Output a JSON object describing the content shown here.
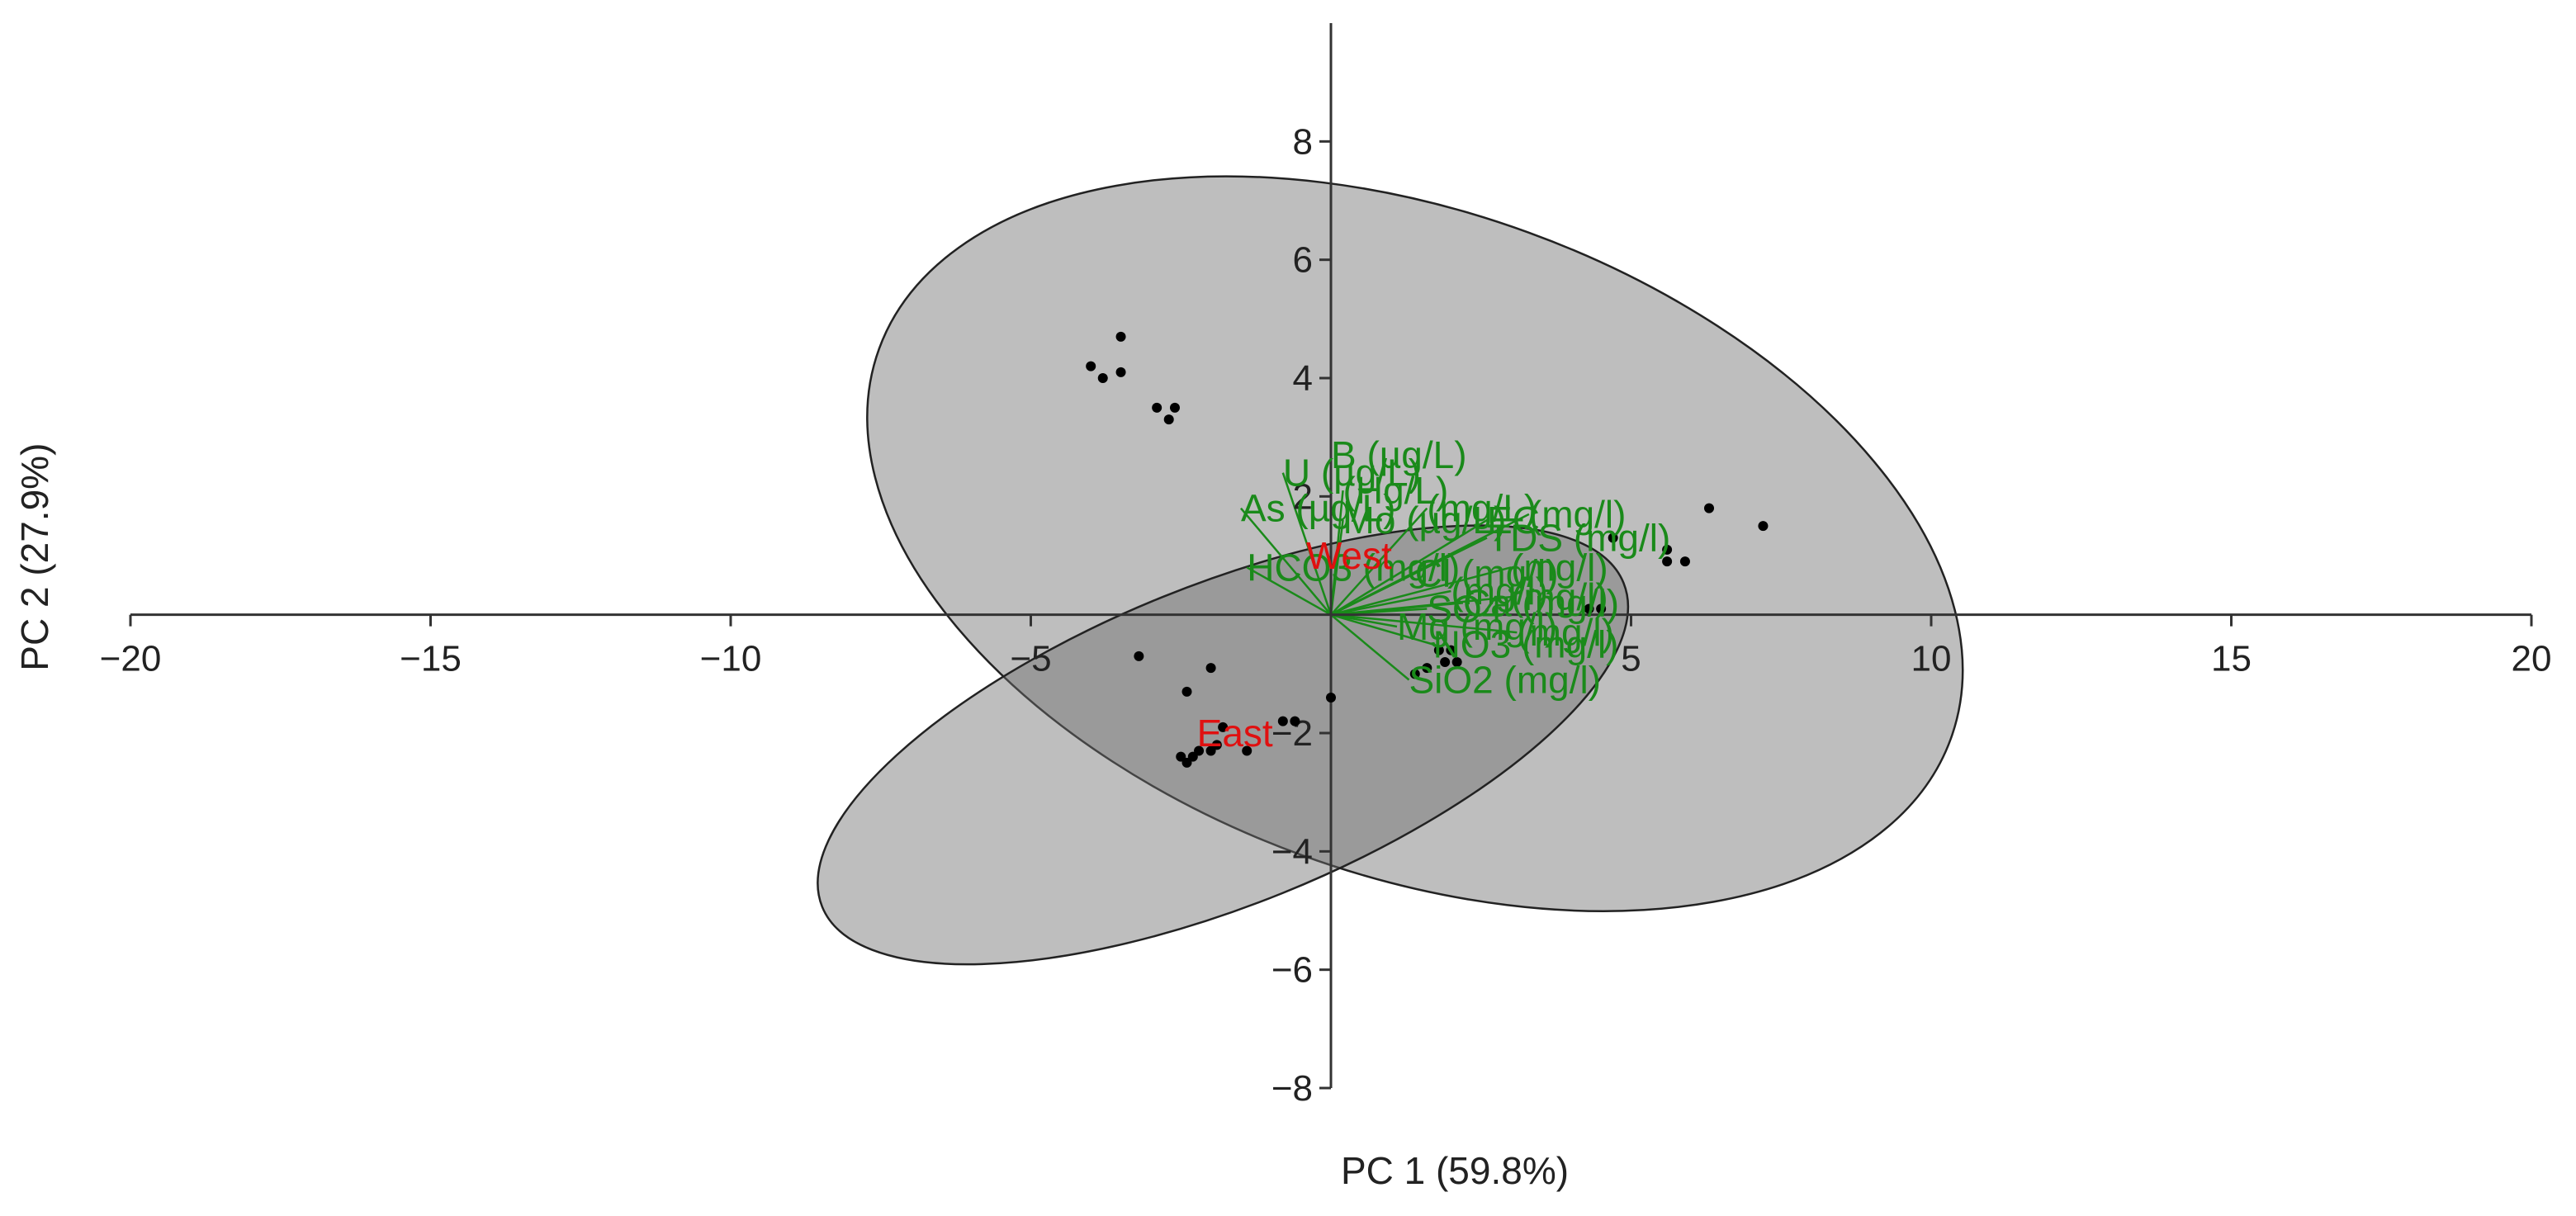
{
  "chart_data": {
    "type": "scatter",
    "subtype": "pca-biplot",
    "title": "",
    "xlabel": "PC 1 (59.8%)",
    "ylabel": "PC 2 (27.9%)",
    "xlim": [
      -20,
      20
    ],
    "ylim": [
      -8,
      10
    ],
    "xticks": [
      -20,
      -15,
      -10,
      -5,
      5,
      10,
      15,
      20
    ],
    "yticks": [
      -8,
      -6,
      -4,
      -2,
      2,
      4,
      6,
      8
    ],
    "xtick_labels": [
      "−20",
      "−15",
      "−10",
      "−5",
      "5",
      "10",
      "15",
      "20"
    ],
    "ytick_labels": [
      "−8",
      "−6",
      "−4",
      "−2",
      "2",
      "4",
      "6",
      "8"
    ],
    "grid": false,
    "points": [
      {
        "x": -4.0,
        "y": 4.2
      },
      {
        "x": -3.8,
        "y": 4.0
      },
      {
        "x": -3.5,
        "y": 4.7
      },
      {
        "x": -3.5,
        "y": 4.1
      },
      {
        "x": -2.9,
        "y": 3.5
      },
      {
        "x": -2.7,
        "y": 3.3
      },
      {
        "x": -2.6,
        "y": 3.5
      },
      {
        "x": 6.3,
        "y": 1.8
      },
      {
        "x": 7.2,
        "y": 1.5
      },
      {
        "x": 5.6,
        "y": 1.1
      },
      {
        "x": 5.6,
        "y": 0.9
      },
      {
        "x": 5.9,
        "y": 0.9
      },
      {
        "x": 4.7,
        "y": 1.3
      },
      {
        "x": -3.2,
        "y": -0.7
      },
      {
        "x": -2.4,
        "y": -1.3
      },
      {
        "x": -2.0,
        "y": -0.9
      },
      {
        "x": 0.0,
        "y": -1.4
      },
      {
        "x": -0.8,
        "y": -1.8
      },
      {
        "x": -0.6,
        "y": -1.8
      },
      {
        "x": -2.5,
        "y": -2.4
      },
      {
        "x": -2.4,
        "y": -2.5
      },
      {
        "x": -2.3,
        "y": -2.4
      },
      {
        "x": -2.2,
        "y": -2.3
      },
      {
        "x": -2.0,
        "y": -2.3
      },
      {
        "x": -1.9,
        "y": -2.2
      },
      {
        "x": -1.4,
        "y": -2.3
      },
      {
        "x": -1.8,
        "y": -1.9
      },
      {
        "x": 1.4,
        "y": -1.0
      },
      {
        "x": 1.6,
        "y": -0.9
      },
      {
        "x": 1.8,
        "y": -0.6
      },
      {
        "x": 2.0,
        "y": -0.6
      },
      {
        "x": 1.9,
        "y": -0.8
      },
      {
        "x": 2.1,
        "y": -0.8
      },
      {
        "x": 4.5,
        "y": 0.1
      },
      {
        "x": 4.3,
        "y": 0.1
      }
    ],
    "groups": [
      {
        "name": "West",
        "label_x": 0.3,
        "label_y": 1.0,
        "ellipse": {
          "cx": 1.4,
          "cy": 1.2,
          "rx": 9.5,
          "ry": 5.6,
          "angle_deg": -20
        }
      },
      {
        "name": "East",
        "label_x": -1.6,
        "label_y": -2.0,
        "ellipse": {
          "cx": -1.8,
          "cy": -2.2,
          "rx": 7.2,
          "ry": 2.7,
          "angle_deg": 22
        }
      }
    ],
    "loadings": [
      {
        "name": "B (µg/L)",
        "x": 0.0,
        "y": 2.7
      },
      {
        "name": "U (µg/L)",
        "x": -0.8,
        "y": 2.4
      },
      {
        "name": "(Hg/L)",
        "x": 0.2,
        "y": 2.1
      },
      {
        "name": "(mg/L)",
        "x": 1.6,
        "y": 1.8
      },
      {
        "name": "As (µg/L)",
        "x": -1.5,
        "y": 1.8
      },
      {
        "name": "Mo (µg/L)",
        "x": 0.2,
        "y": 1.6
      },
      {
        "name": "EC",
        "x": 2.6,
        "y": 1.6
      },
      {
        "name": "(mg/l)",
        "x": 3.3,
        "y": 1.7
      },
      {
        "name": "TDS (mg/l)",
        "x": 2.6,
        "y": 1.3
      },
      {
        "name": "HCO3 (mg/l)",
        "x": -1.4,
        "y": 0.8
      },
      {
        "name": "Cl (mg/l)",
        "x": 1.4,
        "y": 0.7
      },
      {
        "name": "(mg/l)",
        "x": 3.0,
        "y": 0.8
      },
      {
        "name": "(mg/l)",
        "x": 2.0,
        "y": 0.4
      },
      {
        "name": "SO4",
        "x": 1.6,
        "y": 0.1
      },
      {
        "name": "Ca (mg/l)",
        "x": 2.2,
        "y": 0.2
      },
      {
        "name": "(mg/l)",
        "x": 3.0,
        "y": 0.3
      },
      {
        "name": "Mg (mg/l)",
        "x": 1.1,
        "y": -0.2
      },
      {
        "name": "(mg/l)",
        "x": 3.1,
        "y": -0.3
      },
      {
        "name": "NO3 (mg/l)",
        "x": 1.7,
        "y": -0.5
      },
      {
        "name": "SiO2 (mg/l)",
        "x": 1.3,
        "y": -1.1
      }
    ],
    "colors": {
      "variable": "#1a8a1a",
      "group_label": "#e01010",
      "ellipse_fill": "#6e6e6e",
      "points": "#000000",
      "axes": "#333333"
    }
  }
}
